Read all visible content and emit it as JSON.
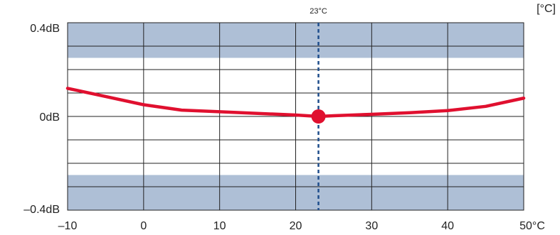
{
  "chart_data": {
    "type": "line",
    "unit_label": "[°C]",
    "x": [
      -10,
      -5,
      0,
      5,
      10,
      15,
      20,
      23,
      25,
      30,
      35,
      40,
      45,
      50
    ],
    "series": [
      {
        "values": [
          0.12,
          0.085,
          0.05,
          0.027,
          0.02,
          0.013,
          0.006,
          0.0,
          0.003,
          0.009,
          0.016,
          0.025,
          0.043,
          0.078
        ]
      }
    ],
    "xlim": [
      -10,
      50
    ],
    "ylim": [
      -0.4,
      0.4
    ],
    "x_ticks": [
      -10,
      0,
      10,
      20,
      30,
      40,
      50
    ],
    "x_tick_labels": [
      "–10",
      "0",
      "10",
      "20",
      "30",
      "40",
      "50°C"
    ],
    "y_tick_labels": [
      {
        "value": 0.4,
        "label": "0.4dB"
      },
      {
        "value": 0,
        "label": "0dB"
      },
      {
        "value": -0.4,
        "label": "–0.4dB"
      }
    ],
    "y_gridlines": [
      -0.3,
      -0.2,
      -0.1,
      0,
      0.1,
      0.2,
      0.3
    ],
    "reference_line": {
      "x": 23,
      "label": "23°C",
      "style": "dashed",
      "color": "#1f4e8c"
    },
    "highlight_point": {
      "x": 23,
      "y": 0,
      "color": "#e0102f"
    },
    "shaded_bands": [
      {
        "y0": 0.25,
        "y1": 0.4,
        "color": "#aebfd6"
      },
      {
        "y0": -0.4,
        "y1": -0.25,
        "color": "#aebfd6"
      }
    ],
    "line_color": "#e0102f",
    "grid": true
  }
}
